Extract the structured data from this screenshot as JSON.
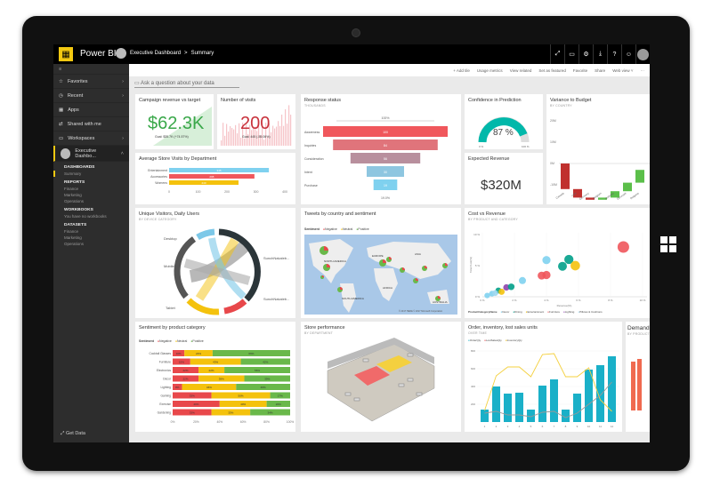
{
  "app": {
    "name": "Power BI",
    "breadcrumb": "Executive Dashboard",
    "breadcrumb_sep": ">",
    "page": "Summary"
  },
  "topbar_icons": [
    "expand-icon",
    "comment-icon",
    "gear-icon",
    "download-icon",
    "help-icon",
    "smiley-icon",
    "user-avatar"
  ],
  "topbar_glyphs": [
    "⤢",
    "▭",
    "⚙",
    "⤓",
    "?",
    "☺"
  ],
  "sidebar": {
    "nav": [
      {
        "label": "Favorites",
        "icon": "☆",
        "chev": "›"
      },
      {
        "label": "Recent",
        "icon": "◷",
        "chev": "›"
      },
      {
        "label": "Apps",
        "icon": "▦",
        "chev": ""
      },
      {
        "label": "Shared with me",
        "icon": "⇄",
        "chev": ""
      },
      {
        "label": "Workspaces",
        "icon": "▭",
        "chev": "›"
      }
    ],
    "workspace": "Executive Dashbo...",
    "sections": [
      {
        "heading": "DASHBOARDS",
        "items": [
          "Summary"
        ]
      },
      {
        "heading": "REPORTS",
        "items": [
          "Finance",
          "Marketing",
          "Operations"
        ]
      },
      {
        "heading": "WORKBOOKS",
        "items": [
          "You have no workbooks"
        ]
      },
      {
        "heading": "DATASETS",
        "items": [
          "Finance",
          "Marketing",
          "Operations"
        ]
      }
    ],
    "get_data": "Get Data"
  },
  "actions": [
    "+ Add tile",
    "Usage metrics",
    "View related",
    "Set as featured",
    "Favorite",
    "Share",
    "Web view ˅",
    "···"
  ],
  "qa_placeholder": "Ask a question about your data",
  "tiles": {
    "campaign": {
      "title": "Campaign revenue vs target",
      "value": "$62.3K",
      "goal": "Goal: $35.7K (+74.57%)"
    },
    "visits": {
      "title": "Number of visits",
      "value": "200",
      "goal": "Goal: 445 (-55.06%)"
    },
    "response": {
      "title": "Response status",
      "subtitle": "THOUSANDS",
      "top": "100%",
      "bottom": "19.0%"
    },
    "confidence": {
      "title": "Confidence in Prediction",
      "value": "87 %",
      "min": "0 %",
      "max": "100 %"
    },
    "variance": {
      "title": "Variance to Budget",
      "subtitle": "BY COUNTRY"
    },
    "avgvisits": {
      "title": "Average Store Visits by Department"
    },
    "expected": {
      "title": "Expected Revenue",
      "value": "$320M"
    },
    "unique": {
      "title": "Unique Visitors, Daily Users",
      "subtitle": "BY DEVICE CATEGORY",
      "labels": [
        "Desktop",
        "Mobile",
        "Tablet",
        "SunchNakaleb...",
        "SunchNakaleb..."
      ]
    },
    "tweets": {
      "title": "Tweets by country and sentiment",
      "legend_title": "Sentiment",
      "legend": [
        "Negative",
        "Neutral",
        "Positive"
      ],
      "regions": [
        "NORTH AMERICA",
        "EUROPE",
        "ASIA",
        "AFRICA",
        "SOUTH AMERICA",
        "AUSTRALIA"
      ],
      "credit": "© 2017 HERE  © 2017 Microsoft Corporation"
    },
    "cost": {
      "title": "Cost vs Revenue",
      "subtitle": "BY PRODUCT AND CATEGORY",
      "xlabel": "Revenue(%)",
      "ylabel": "Total Cost(%)",
      "legend_title": "ProductCategoryName",
      "legend": [
        "Decor",
        "Dining",
        "Entertainment",
        "Furniture",
        "Lighting",
        "Pillows & Cushions"
      ]
    },
    "sentiment": {
      "title": "Sentiment by product category",
      "legend_title": "Sentiment",
      "legend": [
        "Negative",
        "Neutral",
        "Positive"
      ]
    },
    "store": {
      "title": "Store performance",
      "subtitle": "BY DEPARTMENT"
    },
    "order": {
      "title": "Order, inventory, lost sales units",
      "subtitle": "OVER TIME",
      "legend": [
        "OrderQty",
        "LostSalesQty",
        "InventoryQty"
      ]
    },
    "demand": {
      "title": "Demand",
      "subtitle": "BY PRODUCT"
    }
  },
  "colors": {
    "accent": "#f2c811",
    "negative": "#e8484b",
    "neutral": "#f4c20d",
    "positive": "#6ab84a",
    "teal": "#01b8aa",
    "cyan": "#1ab0c8"
  },
  "chart_data": [
    {
      "type": "bar",
      "title": "Average Store Visits by Department",
      "categories": [
        "Entertainment",
        "Accessories",
        "Womens"
      ],
      "values": [
        345,
        295,
        240
      ],
      "xlim": [
        0,
        400
      ],
      "xticks": [
        0,
        100,
        200,
        300,
        400
      ]
    },
    {
      "type": "bar",
      "title": "Response status",
      "categories": [
        "Awareness",
        "Inquiries",
        "Consideration",
        "Intent",
        "Purchase"
      ],
      "values": [
        100,
        84,
        56,
        30,
        19
      ]
    },
    {
      "type": "bar",
      "title": "Variance to Budget",
      "categories": [
        "Canada",
        "USA",
        "Germany",
        "Belgium",
        "Australia",
        "Denmark",
        "Bulgaria"
      ],
      "values": [
        -12,
        -4,
        -1,
        1,
        3,
        4,
        6
      ],
      "yticks": [
        "20M",
        "10M",
        "0M",
        "-10M"
      ]
    },
    {
      "type": "scatter",
      "title": "Cost vs Revenue",
      "xticks": [
        "0 %",
        "2 %",
        "4 %",
        "6 %",
        "8 %",
        "10 %"
      ],
      "yticks": [
        "0 %",
        "5 %",
        "10 %"
      ],
      "points": [
        [
          0.3,
          0.2,
          0
        ],
        [
          0.6,
          0.5,
          0
        ],
        [
          1,
          1,
          1
        ],
        [
          1.5,
          1.5,
          4
        ],
        [
          1.8,
          1.6,
          1
        ],
        [
          2.5,
          2.6,
          0
        ],
        [
          3.7,
          3.4,
          3
        ],
        [
          4,
          3.5,
          3
        ],
        [
          4,
          5.9,
          0
        ],
        [
          5,
          4.9,
          1
        ],
        [
          5.4,
          6,
          1
        ],
        [
          5.8,
          5,
          2
        ],
        [
          8.8,
          8,
          3
        ],
        [
          1.2,
          0.8,
          2
        ],
        [
          0.8,
          0.6,
          5
        ]
      ]
    },
    {
      "type": "bar",
      "title": "Sentiment by product category",
      "stacked": true,
      "categories": [
        "Cocktail Glasses",
        "Furniture",
        "Electronics",
        "Décor",
        "Lighting",
        "Gaming",
        "Exercise",
        "Gardening"
      ],
      "series": [
        {
          "name": "Negative",
          "values": [
            10,
            15,
            22,
            22,
            8,
            33,
            40,
            33
          ]
        },
        {
          "name": "Neutral",
          "values": [
            24,
            43,
            22,
            39,
            46,
            50,
            40,
            33
          ]
        },
        {
          "name": "Positive",
          "values": [
            66,
            42,
            56,
            39,
            46,
            17,
            20,
            34
          ]
        }
      ],
      "xticks": [
        "0%",
        "20%",
        "40%",
        "60%",
        "80%",
        "100%"
      ]
    },
    {
      "type": "bar",
      "title": "Order, inventory, lost sales units",
      "categories": [
        "1",
        "2",
        "3",
        "4",
        "5",
        "6",
        "7",
        "8",
        "9",
        "10",
        "11",
        "12"
      ],
      "yticks": [
        200,
        400,
        600,
        800
      ],
      "series": [
        {
          "name": "OrderQty",
          "values": [
            140,
            400,
            320,
            330,
            140,
            410,
            480,
            140,
            320,
            590,
            640,
            740
          ]
        },
        {
          "name": "InventoryQty",
          "values": [
            130,
            520,
            620,
            620,
            510,
            760,
            770,
            510,
            510,
            610,
            250,
            120
          ]
        },
        {
          "name": "LostSalesQty",
          "values": [
            100,
            120,
            80,
            80,
            60,
            110,
            120,
            50,
            100,
            200,
            300,
            450
          ]
        }
      ]
    }
  ]
}
